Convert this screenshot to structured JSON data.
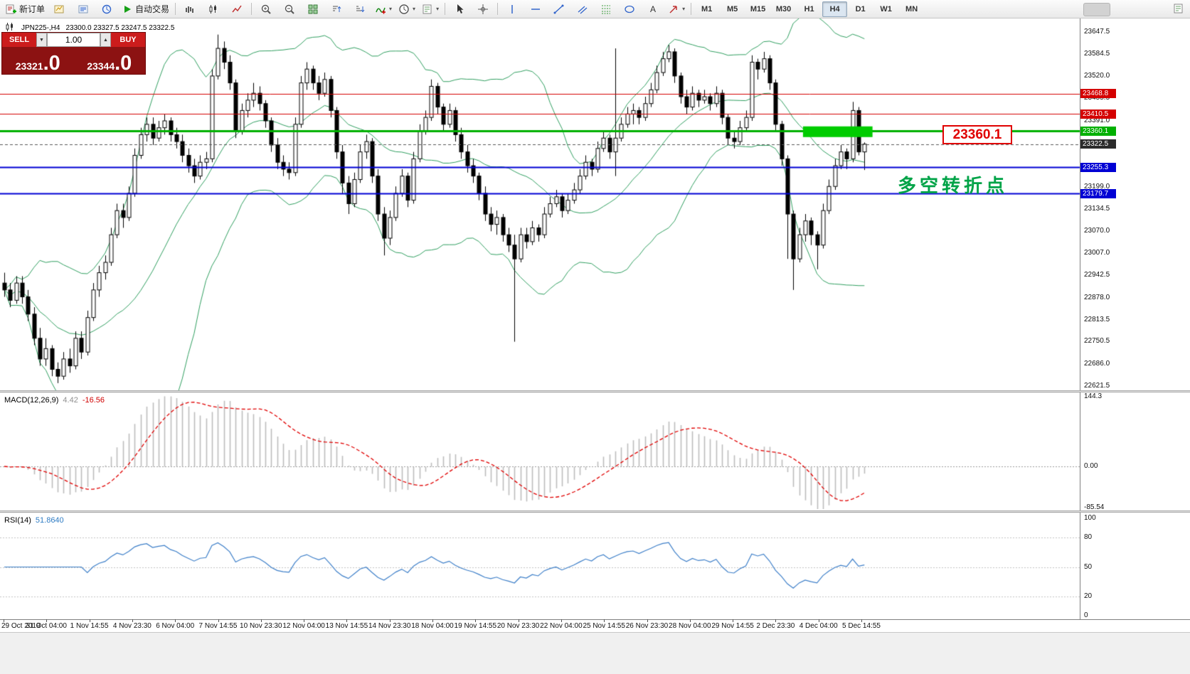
{
  "app": {
    "name": "MetaTrader",
    "background": "#f0f0f0"
  },
  "toolbar": {
    "buttons": [
      {
        "name": "new-order",
        "label": "新订单",
        "icon": "order"
      },
      {
        "name": "chart-add",
        "icon": "chart-add"
      },
      {
        "name": "market-watch",
        "icon": "quotes"
      },
      {
        "name": "navigator",
        "icon": "navigator"
      },
      {
        "name": "autotrade",
        "label": "自动交易",
        "icon": "play"
      },
      {
        "name": "sep"
      },
      {
        "name": "bar-chart",
        "icon": "bars"
      },
      {
        "name": "candle-chart",
        "icon": "candles"
      },
      {
        "name": "line-chart",
        "icon": "line"
      },
      {
        "name": "sep"
      },
      {
        "name": "zoom-in",
        "icon": "zoom-in"
      },
      {
        "name": "zoom-out",
        "icon": "zoom-out"
      },
      {
        "name": "tile-windows",
        "icon": "grid"
      },
      {
        "name": "sort-asc",
        "icon": "sort-asc"
      },
      {
        "name": "sort-desc",
        "icon": "sort-desc"
      },
      {
        "name": "indicators",
        "icon": "indicator",
        "dropdown": true
      },
      {
        "name": "periods",
        "icon": "clock",
        "dropdown": true
      },
      {
        "name": "templates",
        "icon": "template",
        "dropdown": true
      },
      {
        "name": "sep"
      },
      {
        "name": "cursor",
        "icon": "cursor"
      },
      {
        "name": "crosshair",
        "icon": "crosshair"
      },
      {
        "name": "sep"
      },
      {
        "name": "vertical-line",
        "icon": "vline"
      },
      {
        "name": "horizontal-line",
        "icon": "hline"
      },
      {
        "name": "trendline",
        "icon": "tline"
      },
      {
        "name": "equidistant-channel",
        "icon": "channel"
      },
      {
        "name": "fibonacci",
        "icon": "fibo"
      },
      {
        "name": "shapes",
        "icon": "shapes"
      },
      {
        "name": "text-label",
        "icon": "text"
      },
      {
        "name": "arrow-tools",
        "icon": "arrow",
        "dropdown": true
      },
      {
        "name": "sep"
      }
    ],
    "timeframes": [
      "M1",
      "M5",
      "M15",
      "M30",
      "H1",
      "H4",
      "D1",
      "W1",
      "MN"
    ],
    "active_timeframe": "H4"
  },
  "chart": {
    "title_symbol": "JPN225-,H4",
    "title_ohlc": "23300.0 23327.5 23247.5 23322.5",
    "trade_panel": {
      "sell_label": "SELL",
      "buy_label": "BUY",
      "volume": "1.00",
      "sell_price_main": "23321",
      "sell_price_frac": ".0",
      "buy_price_main": "23344",
      "buy_price_frac": ".0"
    }
  },
  "chart_data": {
    "type": "candlestick",
    "symbol": "JPN225-",
    "period": "H4",
    "current_bar": {
      "open": 23300.0,
      "high": 23327.5,
      "low": 23247.5,
      "close": 23322.5
    },
    "price_range": {
      "top": 23647.5,
      "bottom": 22621.5
    },
    "style": {
      "bull": "#ffffff",
      "bear": "#000000",
      "wick": "#000000",
      "border": "#000000"
    },
    "overlays": [
      {
        "name": "Bollinger Bands",
        "period": 20,
        "deviation": 2,
        "color": "#2f9e5f"
      }
    ],
    "price_axis_ticks": [
      23647.5,
      23584.5,
      23520.0,
      23455.5,
      23391.0,
      23199.0,
      23134.5,
      23070.0,
      23007.0,
      22942.5,
      22878.0,
      22813.5,
      22750.5,
      22686.0,
      22621.5
    ],
    "tagged_levels": [
      {
        "price": 23468.8,
        "label": "23468.8",
        "color": "#d40000",
        "line_width": 1
      },
      {
        "price": 23410.5,
        "label": "23410.5",
        "color": "#d40000",
        "line_width": 1
      },
      {
        "price": 23360.1,
        "label": "23360.1",
        "color": "#00b000",
        "line_width": 3
      },
      {
        "price": 23322.5,
        "label": "23322.5",
        "color": "#2b2b2b",
        "line_width": 1,
        "dashed": true,
        "current": true
      },
      {
        "price": 23255.3,
        "label": "23255.3",
        "color": "#0000d4",
        "line_width": 2
      },
      {
        "price": 23179.7,
        "label": "23179.7",
        "color": "#0000d4",
        "line_width": 2
      }
    ],
    "annotations": {
      "price_callout": "23360.1",
      "pivot_text": "多空转折点",
      "highlight_rect": {
        "bar_start": 135,
        "bar_end": 146,
        "price_top": 23374,
        "price_bottom": 23343,
        "color": "#00cc00"
      }
    },
    "time_labels": [
      "29 Oct 2019",
      "31 Oct 04:00",
      "1 Nov 14:55",
      "4 Nov 23:30",
      "6 Nov 04:00",
      "7 Nov 14:55",
      "10 Nov 23:30",
      "12 Nov 04:00",
      "13 Nov 14:55",
      "14 Nov 23:30",
      "18 Nov 04:00",
      "19 Nov 14:55",
      "20 Nov 23:30",
      "22 Nov 04:00",
      "25 Nov 14:55",
      "26 Nov 23:30",
      "28 Nov 04:00",
      "29 Nov 14:55",
      "2 Dec 23:30",
      "4 Dec 04:00",
      "5 Dec 14:55"
    ],
    "candles": [
      [
        22920,
        22950,
        22880,
        22900
      ],
      [
        22900,
        22920,
        22850,
        22870
      ],
      [
        22870,
        22940,
        22860,
        22920
      ],
      [
        22920,
        22940,
        22860,
        22880
      ],
      [
        22880,
        22900,
        22810,
        22830
      ],
      [
        22830,
        22850,
        22740,
        22760
      ],
      [
        22760,
        22790,
        22680,
        22700
      ],
      [
        22700,
        22760,
        22680,
        22730
      ],
      [
        22730,
        22740,
        22650,
        22670
      ],
      [
        22670,
        22690,
        22630,
        22650
      ],
      [
        22650,
        22720,
        22640,
        22700
      ],
      [
        22700,
        22730,
        22660,
        22680
      ],
      [
        22680,
        22780,
        22670,
        22760
      ],
      [
        22760,
        22780,
        22700,
        22720
      ],
      [
        22720,
        22840,
        22710,
        22820
      ],
      [
        22820,
        22920,
        22810,
        22900
      ],
      [
        22900,
        22970,
        22880,
        22950
      ],
      [
        22950,
        23000,
        22930,
        22980
      ],
      [
        22980,
        23080,
        22970,
        23060
      ],
      [
        23060,
        23150,
        23050,
        23130
      ],
      [
        23130,
        23150,
        23080,
        23110
      ],
      [
        23110,
        23200,
        23100,
        23180
      ],
      [
        23180,
        23310,
        23170,
        23290
      ],
      [
        23290,
        23370,
        23280,
        23350
      ],
      [
        23350,
        23400,
        23330,
        23380
      ],
      [
        23380,
        23400,
        23320,
        23340
      ],
      [
        23340,
        23390,
        23330,
        23370
      ],
      [
        23370,
        23410,
        23350,
        23390
      ],
      [
        23390,
        23400,
        23330,
        23350
      ],
      [
        23350,
        23370,
        23310,
        23330
      ],
      [
        23330,
        23350,
        23270,
        23290
      ],
      [
        23290,
        23310,
        23240,
        23260
      ],
      [
        23260,
        23280,
        23210,
        23230
      ],
      [
        23230,
        23290,
        23220,
        23270
      ],
      [
        23270,
        23300,
        23250,
        23280
      ],
      [
        23280,
        23540,
        23270,
        23520
      ],
      [
        23520,
        23640,
        23510,
        23600
      ],
      [
        23600,
        23620,
        23540,
        23560
      ],
      [
        23560,
        23580,
        23480,
        23500
      ],
      [
        23500,
        23510,
        23340,
        23360
      ],
      [
        23360,
        23440,
        23350,
        23420
      ],
      [
        23420,
        23470,
        23400,
        23450
      ],
      [
        23450,
        23500,
        23430,
        23470
      ],
      [
        23470,
        23490,
        23420,
        23440
      ],
      [
        23440,
        23450,
        23370,
        23390
      ],
      [
        23390,
        23400,
        23300,
        23320
      ],
      [
        23320,
        23340,
        23250,
        23270
      ],
      [
        23270,
        23290,
        23230,
        23250
      ],
      [
        23250,
        23270,
        23220,
        23240
      ],
      [
        23240,
        23400,
        23230,
        23380
      ],
      [
        23380,
        23520,
        23370,
        23500
      ],
      [
        23500,
        23560,
        23480,
        23540
      ],
      [
        23540,
        23550,
        23480,
        23500
      ],
      [
        23500,
        23520,
        23450,
        23470
      ],
      [
        23470,
        23530,
        23460,
        23510
      ],
      [
        23510,
        23520,
        23400,
        23420
      ],
      [
        23420,
        23430,
        23280,
        23300
      ],
      [
        23300,
        23320,
        23180,
        23210
      ],
      [
        23210,
        23230,
        23120,
        23150
      ],
      [
        23150,
        23240,
        23140,
        23220
      ],
      [
        23220,
        23320,
        23210,
        23300
      ],
      [
        23300,
        23350,
        23280,
        23330
      ],
      [
        23330,
        23340,
        23210,
        23230
      ],
      [
        23230,
        23250,
        23100,
        23120
      ],
      [
        23120,
        23140,
        23000,
        23050
      ],
      [
        23050,
        23130,
        23030,
        23110
      ],
      [
        23110,
        23200,
        23100,
        23180
      ],
      [
        23180,
        23250,
        23170,
        23230
      ],
      [
        23230,
        23240,
        23140,
        23160
      ],
      [
        23160,
        23300,
        23150,
        23280
      ],
      [
        23280,
        23380,
        23270,
        23360
      ],
      [
        23360,
        23420,
        23350,
        23400
      ],
      [
        23400,
        23510,
        23390,
        23490
      ],
      [
        23490,
        23500,
        23410,
        23430
      ],
      [
        23430,
        23440,
        23360,
        23380
      ],
      [
        23380,
        23440,
        23370,
        23420
      ],
      [
        23420,
        23430,
        23330,
        23350
      ],
      [
        23350,
        23370,
        23280,
        23300
      ],
      [
        23300,
        23320,
        23240,
        23260
      ],
      [
        23260,
        23280,
        23210,
        23230
      ],
      [
        23230,
        23240,
        23160,
        23180
      ],
      [
        23180,
        23200,
        23100,
        23120
      ],
      [
        23120,
        23140,
        23070,
        23090
      ],
      [
        23090,
        23130,
        23060,
        23110
      ],
      [
        23110,
        23120,
        23040,
        23060
      ],
      [
        23060,
        23080,
        23010,
        23030
      ],
      [
        23030,
        23060,
        22750,
        22990
      ],
      [
        22990,
        23080,
        22980,
        23060
      ],
      [
        23060,
        23080,
        23020,
        23040
      ],
      [
        23040,
        23100,
        23030,
        23080
      ],
      [
        23080,
        23090,
        23040,
        23060
      ],
      [
        23060,
        23140,
        23050,
        23120
      ],
      [
        23120,
        23170,
        23110,
        23150
      ],
      [
        23150,
        23190,
        23140,
        23170
      ],
      [
        23170,
        23180,
        23110,
        23130
      ],
      [
        23130,
        23180,
        23120,
        23160
      ],
      [
        23160,
        23210,
        23150,
        23190
      ],
      [
        23190,
        23250,
        23180,
        23230
      ],
      [
        23230,
        23290,
        23220,
        23270
      ],
      [
        23270,
        23280,
        23230,
        23250
      ],
      [
        23250,
        23330,
        23240,
        23310
      ],
      [
        23310,
        23360,
        23300,
        23340
      ],
      [
        23340,
        23350,
        23280,
        23300
      ],
      [
        23300,
        23600,
        23230,
        23340
      ],
      [
        23340,
        23400,
        23330,
        23380
      ],
      [
        23380,
        23430,
        23370,
        23410
      ],
      [
        23410,
        23440,
        23380,
        23420
      ],
      [
        23420,
        23430,
        23380,
        23400
      ],
      [
        23400,
        23460,
        23390,
        23440
      ],
      [
        23440,
        23500,
        23430,
        23480
      ],
      [
        23480,
        23550,
        23470,
        23530
      ],
      [
        23530,
        23590,
        23520,
        23570
      ],
      [
        23570,
        23610,
        23560,
        23590
      ],
      [
        23590,
        23600,
        23500,
        23520
      ],
      [
        23520,
        23530,
        23440,
        23460
      ],
      [
        23460,
        23480,
        23410,
        23430
      ],
      [
        23430,
        23490,
        23420,
        23470
      ],
      [
        23470,
        23480,
        23430,
        23450
      ],
      [
        23450,
        23480,
        23440,
        23460
      ],
      [
        23460,
        23470,
        23420,
        23440
      ],
      [
        23440,
        23490,
        23430,
        23470
      ],
      [
        23470,
        23480,
        23380,
        23400
      ],
      [
        23400,
        23410,
        23320,
        23340
      ],
      [
        23340,
        23360,
        23310,
        23330
      ],
      [
        23330,
        23390,
        23320,
        23370
      ],
      [
        23370,
        23420,
        23360,
        23400
      ],
      [
        23400,
        23580,
        23390,
        23560
      ],
      [
        23560,
        23570,
        23510,
        23540
      ],
      [
        23540,
        23590,
        23530,
        23570
      ],
      [
        23570,
        23580,
        23480,
        23500
      ],
      [
        23500,
        23510,
        23360,
        23380
      ],
      [
        23380,
        23390,
        23260,
        23280
      ],
      [
        23280,
        23290,
        22990,
        23120
      ],
      [
        23120,
        23130,
        22900,
        22990
      ],
      [
        22990,
        23080,
        22980,
        23060
      ],
      [
        23060,
        23120,
        23040,
        23100
      ],
      [
        23100,
        23110,
        23030,
        23060
      ],
      [
        23060,
        23070,
        22960,
        23030
      ],
      [
        23030,
        23150,
        23020,
        23130
      ],
      [
        23130,
        23220,
        23120,
        23200
      ],
      [
        23200,
        23280,
        23190,
        23260
      ],
      [
        23260,
        23320,
        23250,
        23300
      ],
      [
        23300,
        23310,
        23250,
        23280
      ],
      [
        23280,
        23445,
        23270,
        23420
      ],
      [
        23420,
        23430,
        23290,
        23300
      ],
      [
        23300,
        23327.5,
        23247.5,
        23322.5
      ]
    ],
    "indicators": [
      {
        "name": "MACD",
        "label": "MACD(12,26,9)",
        "value_main": "4.42",
        "value_signal": "-16.56",
        "axis_labels": [
          {
            "v": 144.3,
            "t": "144.3"
          },
          {
            "v": 0,
            "t": "0.00"
          },
          {
            "v": -85.54,
            "t": "-85.54"
          }
        ],
        "histogram_color": "#bcbcbc",
        "signal_color": "#e00000"
      },
      {
        "name": "RSI",
        "label": "RSI(14)",
        "value": "51.8640",
        "axis_labels": [
          {
            "v": 100,
            "t": "100"
          },
          {
            "v": 80,
            "t": "80"
          },
          {
            "v": 50,
            "t": "50"
          },
          {
            "v": 20,
            "t": "20"
          },
          {
            "v": 0,
            "t": "0"
          }
        ],
        "levels": [
          20,
          50,
          80
        ],
        "line_color": "#3c7ec8"
      }
    ]
  }
}
